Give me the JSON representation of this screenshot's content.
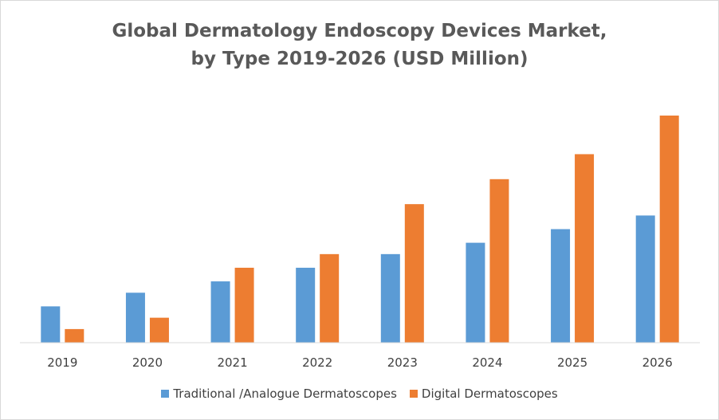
{
  "chart_data": {
    "type": "bar",
    "title_line1": "Global Dermatology Endoscopy Devices Market,",
    "title_line2": "by Type 2019-2026 (USD Million)",
    "xlabel": "",
    "ylabel": "",
    "categories": [
      "2019",
      "2020",
      "2021",
      "2022",
      "2023",
      "2024",
      "2025",
      "2026"
    ],
    "series": [
      {
        "name": "Traditional /Analogue Dermatoscopes",
        "color": "#5b9bd5",
        "values": [
          16,
          22,
          27,
          33,
          39,
          44,
          50,
          56
        ]
      },
      {
        "name": "Digital Dermatoscopes",
        "color": "#ed7d31",
        "values": [
          6,
          11,
          33,
          39,
          61,
          72,
          83,
          100
        ]
      }
    ],
    "ylim": [
      0,
      100
    ],
    "grid": false,
    "legend_position": "bottom"
  }
}
